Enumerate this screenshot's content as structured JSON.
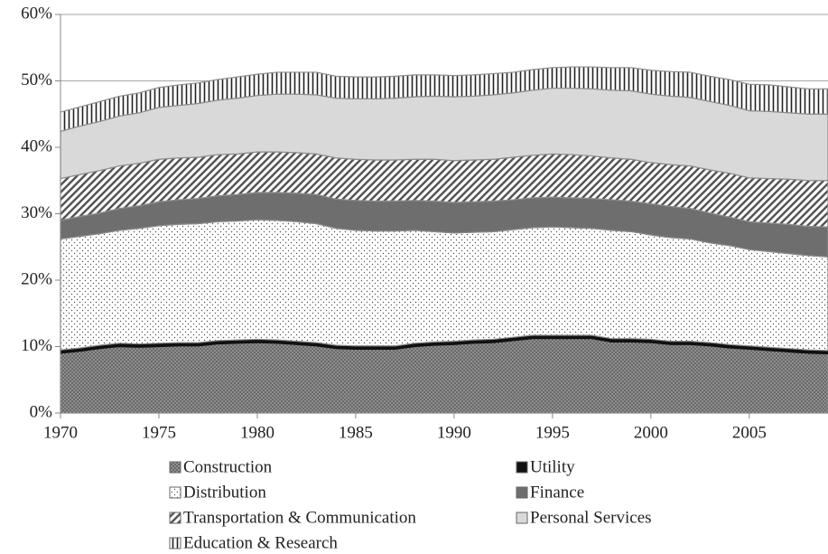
{
  "chart_data": {
    "type": "stacked_area",
    "x": [
      1970,
      1971,
      1972,
      1973,
      1974,
      1975,
      1976,
      1977,
      1978,
      1979,
      1980,
      1981,
      1982,
      1983,
      1984,
      1985,
      1986,
      1987,
      1988,
      1989,
      1990,
      1991,
      1992,
      1993,
      1994,
      1995,
      1996,
      1997,
      1998,
      1999,
      2000,
      2001,
      2002,
      2003,
      2004,
      2005,
      2006,
      2007,
      2008,
      2009
    ],
    "series": [
      {
        "name": "Construction",
        "color": "#8a8a8a",
        "pattern": "crosshatch",
        "values": [
          9.0,
          9.3,
          9.7,
          10.0,
          9.9,
          10.0,
          10.1,
          10.1,
          10.4,
          10.5,
          10.6,
          10.5,
          10.3,
          10.1,
          9.7,
          9.6,
          9.6,
          9.6,
          10.0,
          10.2,
          10.3,
          10.5,
          10.6,
          10.9,
          11.2,
          11.2,
          11.2,
          11.2,
          10.7,
          10.7,
          10.6,
          10.3,
          10.3,
          10.1,
          9.8,
          9.6,
          9.4,
          9.2,
          9.0,
          8.9
        ]
      },
      {
        "name": "Utility",
        "color": "#111111",
        "pattern": "solid",
        "values": [
          0.5,
          0.5,
          0.5,
          0.5,
          0.5,
          0.5,
          0.5,
          0.5,
          0.5,
          0.5,
          0.5,
          0.5,
          0.5,
          0.5,
          0.5,
          0.5,
          0.5,
          0.5,
          0.5,
          0.5,
          0.5,
          0.5,
          0.5,
          0.5,
          0.5,
          0.5,
          0.5,
          0.5,
          0.5,
          0.5,
          0.5,
          0.5,
          0.5,
          0.5,
          0.5,
          0.5,
          0.5,
          0.5,
          0.5,
          0.5
        ]
      },
      {
        "name": "Distribution",
        "color": "#ffffff",
        "pattern": "dots",
        "values": [
          16.7,
          16.8,
          16.8,
          17.0,
          17.4,
          17.7,
          17.8,
          17.9,
          17.9,
          17.9,
          18.0,
          18.0,
          18.0,
          17.9,
          17.6,
          17.4,
          17.3,
          17.3,
          17.0,
          16.6,
          16.3,
          16.2,
          16.2,
          16.2,
          16.2,
          16.3,
          16.2,
          16.1,
          16.3,
          16.1,
          15.7,
          15.6,
          15.4,
          15.0,
          14.9,
          14.5,
          14.4,
          14.3,
          14.2,
          14.1
        ]
      },
      {
        "name": "Finance",
        "color": "#6e6e6e",
        "pattern": "solid",
        "values": [
          2.8,
          3.0,
          3.1,
          3.3,
          3.4,
          3.6,
          3.7,
          3.8,
          3.9,
          4.0,
          4.1,
          4.2,
          4.3,
          4.4,
          4.4,
          4.5,
          4.5,
          4.5,
          4.5,
          4.6,
          4.6,
          4.6,
          4.6,
          4.5,
          4.5,
          4.5,
          4.5,
          4.5,
          4.6,
          4.6,
          4.7,
          4.7,
          4.6,
          4.5,
          4.3,
          4.2,
          4.3,
          4.4,
          4.4,
          4.5
        ]
      },
      {
        "name": "Transportation & Communication",
        "color": "#ffffff",
        "pattern": "diagonal",
        "values": [
          6.3,
          6.3,
          6.4,
          6.4,
          6.4,
          6.4,
          6.3,
          6.2,
          6.2,
          6.1,
          6.1,
          6.1,
          6.1,
          6.1,
          6.2,
          6.2,
          6.2,
          6.2,
          6.2,
          6.3,
          6.3,
          6.3,
          6.3,
          6.4,
          6.4,
          6.5,
          6.5,
          6.4,
          6.3,
          6.3,
          6.2,
          6.3,
          6.4,
          6.5,
          6.6,
          6.6,
          6.7,
          6.8,
          6.9,
          7.0
        ]
      },
      {
        "name": "Personal Services",
        "color": "#d9d9d9",
        "pattern": "solid",
        "values": [
          7.1,
          7.3,
          7.4,
          7.5,
          7.6,
          7.8,
          7.9,
          8.1,
          8.2,
          8.4,
          8.5,
          8.7,
          8.8,
          8.9,
          9.0,
          9.1,
          9.2,
          9.3,
          9.4,
          9.5,
          9.6,
          9.6,
          9.7,
          9.7,
          9.8,
          9.9,
          10.0,
          10.1,
          10.2,
          10.3,
          10.3,
          10.3,
          10.3,
          10.3,
          10.2,
          10.1,
          10.1,
          10.0,
          10.0,
          10.0
        ]
      },
      {
        "name": "Education & Research",
        "color": "#ffffff",
        "pattern": "vertical",
        "values": [
          2.9,
          2.9,
          3.0,
          3.0,
          3.0,
          3.0,
          3.1,
          3.1,
          3.1,
          3.2,
          3.2,
          3.3,
          3.3,
          3.4,
          3.3,
          3.3,
          3.3,
          3.3,
          3.3,
          3.2,
          3.2,
          3.2,
          3.2,
          3.1,
          3.1,
          3.1,
          3.2,
          3.3,
          3.4,
          3.5,
          3.6,
          3.7,
          3.8,
          3.8,
          3.9,
          4.0,
          4.0,
          3.9,
          3.8,
          3.8
        ]
      }
    ],
    "xlim": [
      1970,
      2009
    ],
    "xticks": [
      1970,
      1975,
      1980,
      1985,
      1990,
      1995,
      2000,
      2005
    ],
    "ylim": [
      0,
      60
    ],
    "yticks": [
      {
        "value": 0,
        "label": "0%"
      },
      {
        "value": 10,
        "label": "10%"
      },
      {
        "value": 20,
        "label": "20%"
      },
      {
        "value": 30,
        "label": "30%"
      },
      {
        "value": 40,
        "label": "40%"
      },
      {
        "value": 50,
        "label": "50%"
      },
      {
        "value": 60,
        "label": "60%"
      }
    ],
    "grid": true,
    "legend": "bottom"
  }
}
